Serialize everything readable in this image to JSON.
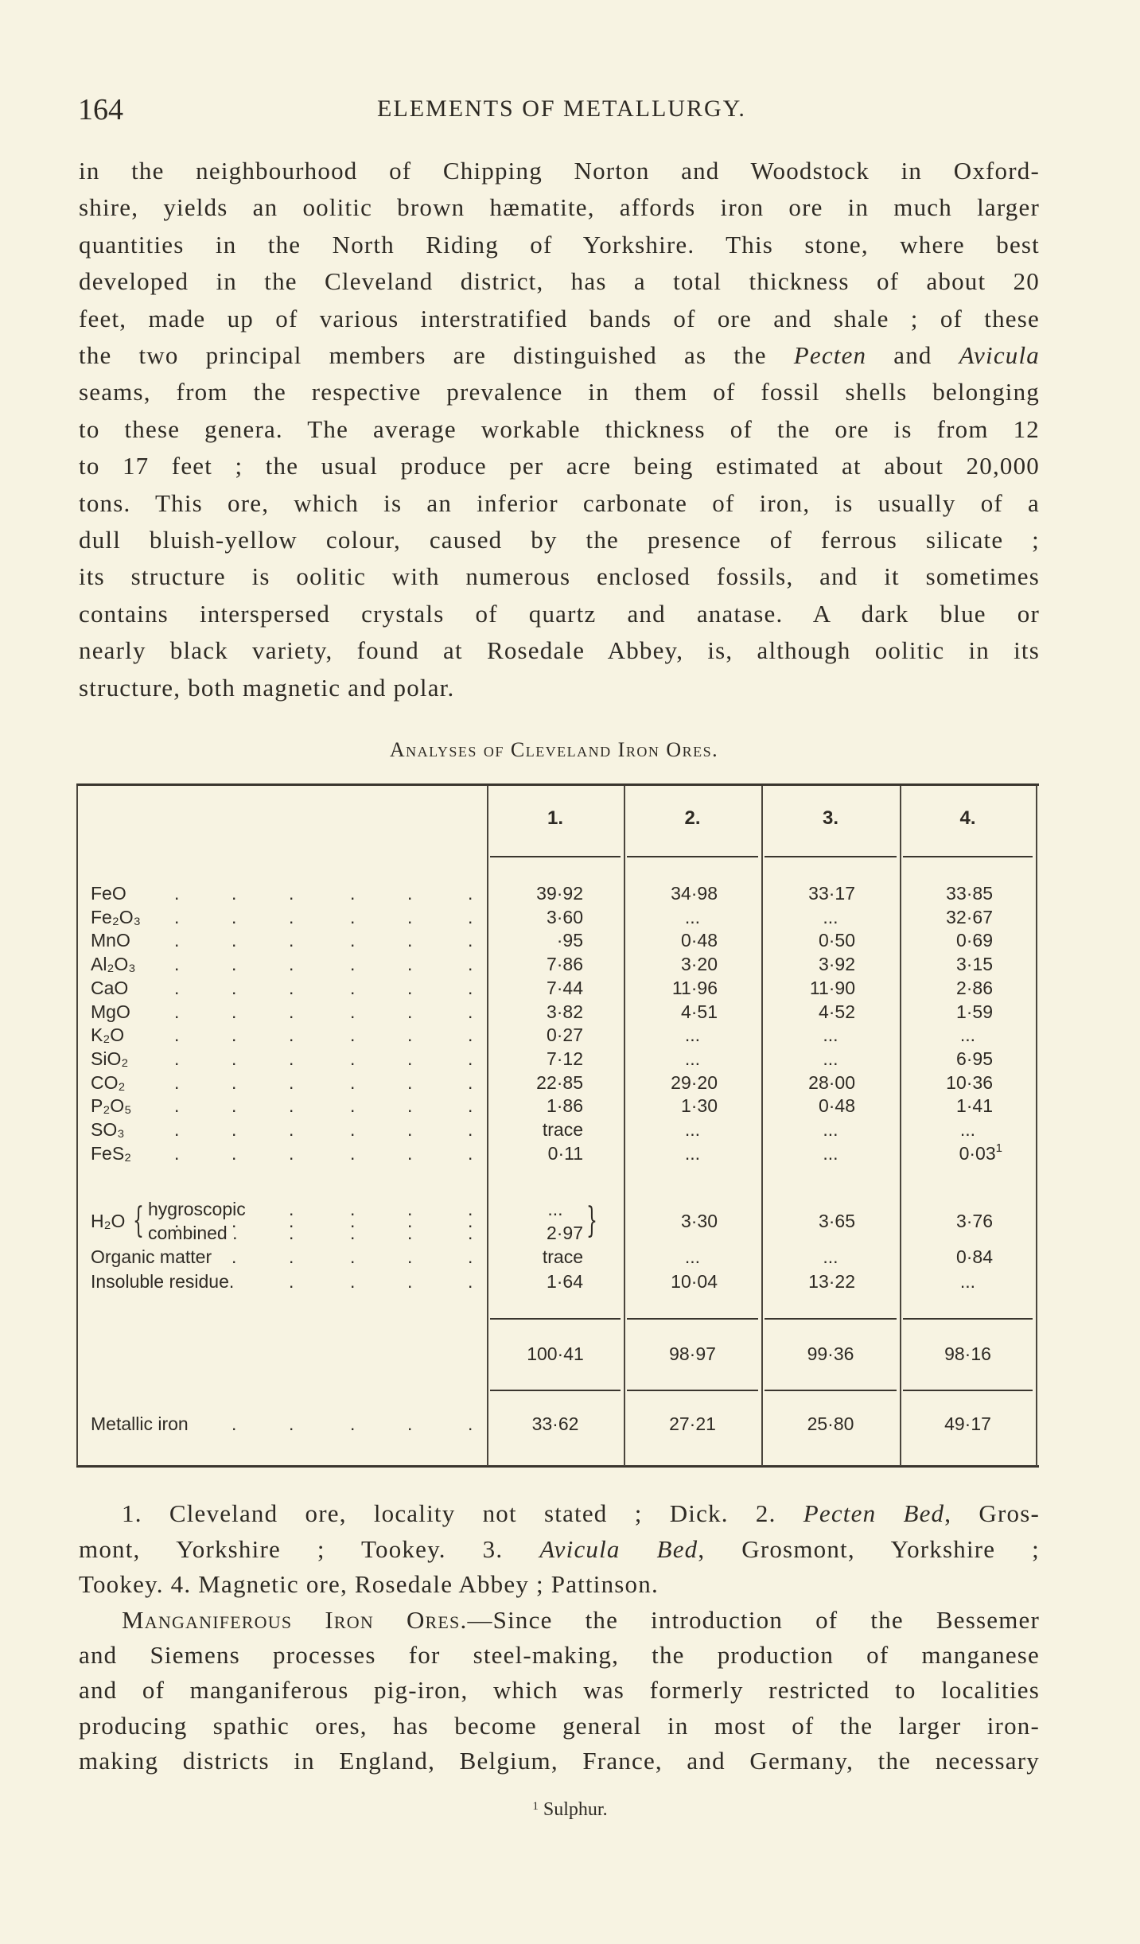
{
  "header": {
    "page_number": "164",
    "running_title": "ELEMENTS OF METALLURGY."
  },
  "paragraph1": [
    [
      "in the neighbourhood of Chipping Norton and Woodstock in Oxford-"
    ],
    [
      "shire, yields an oolitic brown hæmatite, affords iron ore in much larger"
    ],
    [
      "quantities in the North Riding of Yorkshire.  This stone, where best"
    ],
    [
      "developed in the Cleveland district, has a total thickness of about 20"
    ],
    [
      "feet, made up of various interstratified bands of ore and shale ; of these"
    ],
    [
      "the two principal members are distinguished as the ",
      "Pecten",
      " and ",
      "Avicula"
    ],
    [
      "seams, from the respective prevalence in them of fossil shells belonging"
    ],
    [
      "to these genera.  The average workable thickness of the ore is from 12"
    ],
    [
      "to 17 feet ; the usual produce per acre being estimated at about 20,000"
    ],
    [
      "tons.  This ore, which is an inferior carbonate of iron, is usually of a"
    ],
    [
      "dull bluish-yellow colour, caused by the presence of ferrous silicate ;"
    ],
    [
      "its structure is oolitic with numerous enclosed fossils, and it sometimes"
    ],
    [
      "contains interspersed crystals of quartz and anatase.  A dark blue or"
    ],
    [
      "nearly black variety, found at Rosedale Abbey, is, although oolitic in its"
    ],
    [
      "structure, both magnetic and polar."
    ]
  ],
  "table": {
    "caption": "Analyses of Cleveland Iron Ores.",
    "columns": [
      "1.",
      "2.",
      "3.",
      "4."
    ],
    "rows": [
      {
        "label": "FeO",
        "values": [
          "39·92",
          "34·98",
          "33·17",
          "33·85"
        ]
      },
      {
        "label": "Fe₂O₃",
        "values": [
          "3·60",
          "...",
          "...",
          "32·67"
        ]
      },
      {
        "label": "MnO",
        "values": [
          "·95",
          "0·48",
          "0·50",
          "0·69"
        ]
      },
      {
        "label": "Al₂O₃",
        "values": [
          "7·86",
          "3·20",
          "3·92",
          "3·15"
        ]
      },
      {
        "label": "CaO",
        "values": [
          "7·44",
          "11·96",
          "11·90",
          "2·86"
        ]
      },
      {
        "label": "MgO",
        "values": [
          "3·82",
          "4·51",
          "4·52",
          "1·59"
        ]
      },
      {
        "label": "K₂O",
        "values": [
          "0·27",
          "...",
          "...",
          "..."
        ]
      },
      {
        "label": "SiO₂",
        "values": [
          "7·12",
          "...",
          "...",
          "6·95"
        ]
      },
      {
        "label": "CO₂",
        "values": [
          "22·85",
          "29·20",
          "28·00",
          "10·36"
        ]
      },
      {
        "label": "P₂O₅",
        "values": [
          "1·86",
          "1·30",
          "0·48",
          "1·41"
        ]
      },
      {
        "label": "SO₃",
        "values": [
          "trace",
          "...",
          "...",
          "..."
        ]
      },
      {
        "label": "FeS₂",
        "values": [
          "0·11",
          "...",
          "...",
          "0·03"
        ],
        "footnote_marks": [
          "",
          "",
          "",
          "1"
        ]
      }
    ],
    "water": {
      "label": "H₂O",
      "sub_labels": [
        "hygroscopic",
        "combined ."
      ],
      "col1_values": [
        "...",
        "2·97"
      ],
      "values": [
        "3·30",
        "3·65",
        "3·76"
      ]
    },
    "rows_after": [
      {
        "label": "Organic matter",
        "values": [
          "trace",
          "...",
          "...",
          "0·84"
        ]
      },
      {
        "label": "Insoluble residue.",
        "values": [
          "1·64",
          "10·04",
          "13·22",
          "..."
        ]
      }
    ],
    "totals": [
      "100·41",
      "98·97",
      "99·36",
      "98·16"
    ],
    "metallic_iron": {
      "label": "Metallic iron",
      "values": [
        "33·62",
        "27·21",
        "25·80",
        "49·17"
      ]
    }
  },
  "notes": [
    [
      {
        "t": "1. Cleveland ore, locality not stated ; Dick.   2. "
      },
      {
        "t": "Pecten Bed",
        "i": true
      },
      {
        "t": ", Gros-"
      }
    ],
    [
      {
        "t": "mont, Yorkshire ; Tookey.   3. "
      },
      {
        "t": "Avicula Bed",
        "i": true
      },
      {
        "t": ", Grosmont, Yorkshire ;"
      }
    ],
    [
      {
        "t": "Tookey.   4. Magnetic ore, Rosedale Abbey ; Pattinson."
      }
    ]
  ],
  "paragraph2": {
    "heading": "Manganiferous Iron Ores.",
    "lines": [
      "—Since the introduction of the Bessemer",
      "and Siemens processes for steel-making, the production of manganese",
      "and of manganiferous pig-iron, which was formerly restricted to localities",
      "producing spathic ores, has become general in most of the larger iron-",
      "making districts in England, Belgium, France, and Germany, the necessary"
    ]
  },
  "footnote": {
    "mark": "1",
    "text": "Sulphur."
  }
}
